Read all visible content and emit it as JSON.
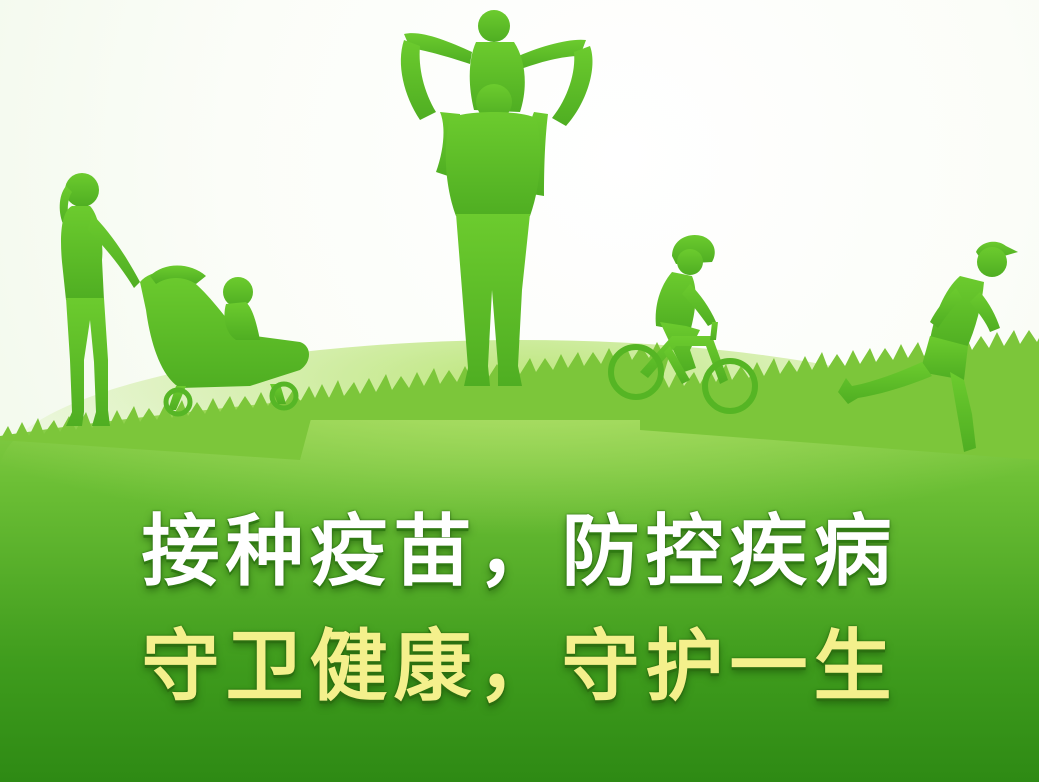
{
  "slogan": {
    "line1": "接种疫苗，防控疾病",
    "line2": "守卫健康，守护一生"
  },
  "colors": {
    "grass_dark": "#2e8a14",
    "grass_light": "#7cc63a",
    "silhouette": "#5fbf2a",
    "line1_text": "#ffffff",
    "line2_text": "#f4f08c"
  },
  "icons": [
    "woman-with-stroller-silhouette",
    "father-carrying-child-silhouette",
    "child-on-bicycle-silhouette",
    "running-man-silhouette"
  ]
}
